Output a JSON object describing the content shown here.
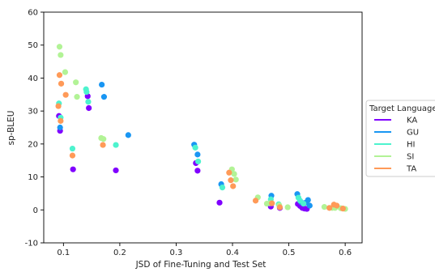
{
  "chart_data": {
    "type": "scatter",
    "title": "",
    "xlabel": "JSD of Fine-Tuning and Test Set",
    "ylabel": "sp-BLEU",
    "xlim": [
      0.065,
      0.63
    ],
    "ylim": [
      -10,
      60
    ],
    "xticks": [
      0.1,
      0.2,
      0.3,
      0.4,
      0.5,
      0.6
    ],
    "yticks": [
      -10,
      0,
      10,
      20,
      30,
      40,
      50,
      60
    ],
    "grid": false,
    "legend": {
      "title": "Target Language",
      "position": "right"
    },
    "series": [
      {
        "name": "KA",
        "color": "#8000ff",
        "points": [
          [
            0.092,
            28.5
          ],
          [
            0.094,
            24.0
          ],
          [
            0.117,
            12.3
          ],
          [
            0.143,
            34.5
          ],
          [
            0.145,
            30.9
          ],
          [
            0.193,
            12.0
          ],
          [
            0.335,
            14.2
          ],
          [
            0.338,
            11.9
          ],
          [
            0.377,
            2.2
          ],
          [
            0.468,
            1.0
          ],
          [
            0.484,
            0.6
          ],
          [
            0.516,
            1.8
          ],
          [
            0.52,
            1.2
          ],
          [
            0.524,
            0.6
          ],
          [
            0.528,
            0.4
          ],
          [
            0.532,
            0.3
          ]
        ]
      },
      {
        "name": "GU",
        "color": "#1996f3",
        "points": [
          [
            0.094,
            25.0
          ],
          [
            0.168,
            38.0
          ],
          [
            0.172,
            34.3
          ],
          [
            0.215,
            22.7
          ],
          [
            0.332,
            19.8
          ],
          [
            0.338,
            16.8
          ],
          [
            0.38,
            7.8
          ],
          [
            0.469,
            4.3
          ],
          [
            0.515,
            4.8
          ],
          [
            0.522,
            2.3
          ],
          [
            0.53,
            2.2
          ],
          [
            0.534,
            3.0
          ],
          [
            0.537,
            1.3
          ]
        ]
      },
      {
        "name": "HI",
        "color": "#4df3ce",
        "points": [
          [
            0.092,
            32.3
          ],
          [
            0.095,
            28.0
          ],
          [
            0.116,
            18.6
          ],
          [
            0.14,
            36.6
          ],
          [
            0.144,
            32.8
          ],
          [
            0.141,
            35.8
          ],
          [
            0.193,
            19.7
          ],
          [
            0.334,
            18.9
          ],
          [
            0.339,
            14.7
          ],
          [
            0.382,
            6.8
          ],
          [
            0.468,
            3.2
          ],
          [
            0.482,
            1.7
          ],
          [
            0.517,
            3.7
          ],
          [
            0.52,
            2.8
          ],
          [
            0.526,
            1.9
          ]
        ]
      },
      {
        "name": "SI",
        "color": "#b2f396",
        "points": [
          [
            0.093,
            49.5
          ],
          [
            0.095,
            47.0
          ],
          [
            0.103,
            41.8
          ],
          [
            0.122,
            38.7
          ],
          [
            0.124,
            34.3
          ],
          [
            0.167,
            21.8
          ],
          [
            0.171,
            21.5
          ],
          [
            0.399,
            12.3
          ],
          [
            0.403,
            10.9
          ],
          [
            0.406,
            9.2
          ],
          [
            0.445,
            3.8
          ],
          [
            0.461,
            1.9
          ],
          [
            0.466,
            2.0
          ],
          [
            0.483,
            1.4
          ],
          [
            0.498,
            0.8
          ],
          [
            0.563,
            0.9
          ],
          [
            0.577,
            0.6
          ],
          [
            0.582,
            0.6
          ],
          [
            0.592,
            0.5
          ],
          [
            0.6,
            0.3
          ]
        ]
      },
      {
        "name": "TA",
        "color": "#ff9a58",
        "points": [
          [
            0.091,
            31.5
          ],
          [
            0.093,
            40.9
          ],
          [
            0.096,
            38.3
          ],
          [
            0.104,
            34.9
          ],
          [
            0.095,
            27.0
          ],
          [
            0.116,
            16.5
          ],
          [
            0.17,
            19.7
          ],
          [
            0.394,
            11.3
          ],
          [
            0.397,
            9.0
          ],
          [
            0.401,
            7.2
          ],
          [
            0.441,
            2.8
          ],
          [
            0.47,
            2.0
          ],
          [
            0.484,
            0.8
          ],
          [
            0.572,
            0.6
          ],
          [
            0.58,
            1.6
          ],
          [
            0.585,
            1.3
          ],
          [
            0.596,
            0.4
          ]
        ]
      }
    ]
  }
}
